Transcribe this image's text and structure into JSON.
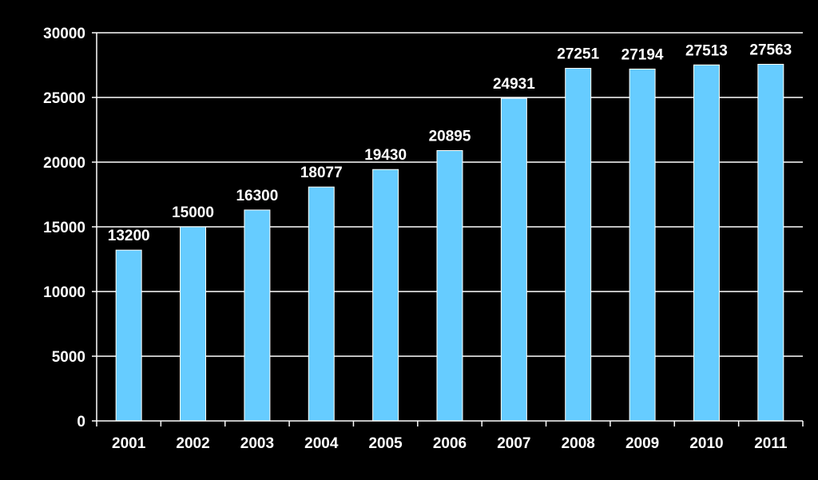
{
  "chart_data": {
    "type": "bar",
    "title": "",
    "xlabel": "",
    "ylabel": "",
    "categories": [
      "2001",
      "2002",
      "2003",
      "2004",
      "2005",
      "2006",
      "2007",
      "2008",
      "2009",
      "2010",
      "2011"
    ],
    "values": [
      13200,
      15000,
      16300,
      18077,
      19430,
      20895,
      24931,
      27251,
      27194,
      27513,
      27563
    ],
    "ylim": [
      0,
      30000
    ],
    "yticks": [
      "0",
      "5000",
      "10000",
      "15000",
      "20000",
      "25000",
      "30000"
    ],
    "grid": true,
    "legend": "none",
    "data_labels": true
  },
  "colors": {
    "background": "#000000",
    "bar_fill": "#66CCFF",
    "bar_stroke": "#FFFFFF",
    "gridline": "#FFFFFF",
    "text": "#FFFFFF"
  }
}
